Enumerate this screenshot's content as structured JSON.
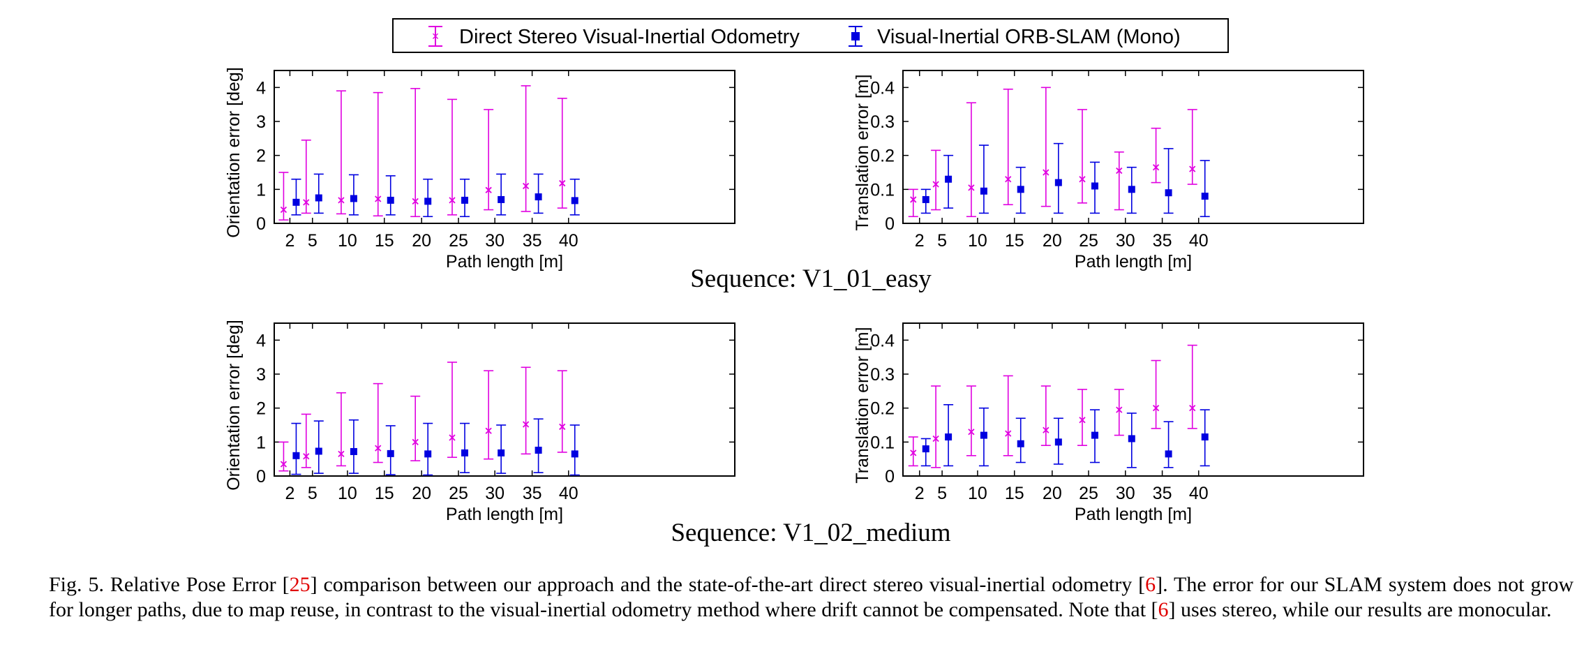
{
  "legend": {
    "dsvio_label": "Direct Stereo Visual-Inertial Odometry",
    "orb_label": "Visual-Inertial ORB-SLAM (Mono)"
  },
  "colors": {
    "dsvio": "#e000e0",
    "orb": "#0000e0"
  },
  "chart_data": [
    {
      "type": "errorbar",
      "id": "v1_01_orient",
      "title": "Sequence: V1_01_easy",
      "xlabel": "Path length [m]",
      "ylabel": "Orientation error [deg]",
      "categories": [
        "2",
        "5",
        "10",
        "15",
        "20",
        "25",
        "30",
        "35",
        "40"
      ],
      "ylim": [
        0,
        4.5
      ],
      "yticks": [
        "0",
        "1",
        "2",
        "3",
        "4"
      ],
      "ytick_values": [
        0,
        1,
        2,
        3,
        4
      ],
      "series": [
        {
          "name": "Direct Stereo Visual-Inertial Odometry",
          "center": [
            0.4,
            0.62,
            0.68,
            0.72,
            0.65,
            0.68,
            0.98,
            1.1,
            1.18
          ],
          "low": [
            0.1,
            0.3,
            0.28,
            0.22,
            0.2,
            0.25,
            0.4,
            0.35,
            0.45
          ],
          "high": [
            1.5,
            2.45,
            3.9,
            3.85,
            3.97,
            3.65,
            3.35,
            4.05,
            3.68
          ]
        },
        {
          "name": "Visual-Inertial ORB-SLAM (Mono)",
          "center": [
            0.62,
            0.75,
            0.73,
            0.68,
            0.65,
            0.68,
            0.7,
            0.78,
            0.67
          ],
          "low": [
            0.25,
            0.3,
            0.25,
            0.25,
            0.2,
            0.2,
            0.25,
            0.3,
            0.25
          ],
          "high": [
            1.3,
            1.45,
            1.43,
            1.4,
            1.3,
            1.3,
            1.45,
            1.45,
            1.3
          ]
        }
      ]
    },
    {
      "type": "errorbar",
      "id": "v1_01_trans",
      "title": "Sequence: V1_01_easy",
      "xlabel": "Path length [m]",
      "ylabel": "Translation error [m]",
      "categories": [
        "2",
        "5",
        "10",
        "15",
        "20",
        "25",
        "30",
        "35",
        "40"
      ],
      "ylim": [
        0,
        0.45
      ],
      "yticks": [
        "0",
        "0.1",
        "0.2",
        "0.3",
        "0.4"
      ],
      "ytick_values": [
        0,
        0.1,
        0.2,
        0.3,
        0.4
      ],
      "series": [
        {
          "name": "Direct Stereo Visual-Inertial Odometry",
          "center": [
            0.07,
            0.115,
            0.105,
            0.13,
            0.15,
            0.13,
            0.155,
            0.165,
            0.16
          ],
          "low": [
            0.02,
            0.04,
            0.02,
            0.055,
            0.05,
            0.06,
            0.04,
            0.12,
            0.115
          ],
          "high": [
            0.1,
            0.215,
            0.355,
            0.395,
            0.4,
            0.335,
            0.21,
            0.28,
            0.335
          ]
        },
        {
          "name": "Visual-Inertial ORB-SLAM (Mono)",
          "center": [
            0.07,
            0.13,
            0.095,
            0.1,
            0.12,
            0.11,
            0.1,
            0.09,
            0.08
          ],
          "low": [
            0.03,
            0.045,
            0.03,
            0.03,
            0.03,
            0.03,
            0.03,
            0.03,
            0.02
          ],
          "high": [
            0.1,
            0.2,
            0.23,
            0.165,
            0.235,
            0.18,
            0.165,
            0.22,
            0.185
          ]
        }
      ]
    },
    {
      "type": "errorbar",
      "id": "v1_02_orient",
      "title": "Sequence: V1_02_medium",
      "xlabel": "Path length [m]",
      "ylabel": "Orientation error [deg]",
      "categories": [
        "2",
        "5",
        "10",
        "15",
        "20",
        "25",
        "30",
        "35",
        "40"
      ],
      "ylim": [
        0,
        4.5
      ],
      "yticks": [
        "0",
        "1",
        "2",
        "3",
        "4"
      ],
      "ytick_values": [
        0,
        1,
        2,
        3,
        4
      ],
      "series": [
        {
          "name": "Direct Stereo Visual-Inertial Odometry",
          "center": [
            0.35,
            0.58,
            0.65,
            0.82,
            1.0,
            1.13,
            1.33,
            1.52,
            1.45
          ],
          "low": [
            0.15,
            0.25,
            0.3,
            0.4,
            0.45,
            0.55,
            0.5,
            0.65,
            0.7
          ],
          "high": [
            1.0,
            1.82,
            2.45,
            2.72,
            2.35,
            3.35,
            3.1,
            3.2,
            3.1
          ]
        },
        {
          "name": "Visual-Inertial ORB-SLAM (Mono)",
          "center": [
            0.6,
            0.73,
            0.72,
            0.66,
            0.65,
            0.68,
            0.68,
            0.76,
            0.65
          ],
          "low": [
            0.05,
            0.08,
            0.08,
            0.04,
            0.03,
            0.1,
            0.08,
            0.1,
            0.03
          ],
          "high": [
            1.55,
            1.62,
            1.65,
            1.48,
            1.55,
            1.55,
            1.5,
            1.68,
            1.5
          ]
        }
      ]
    },
    {
      "type": "errorbar",
      "id": "v1_02_trans",
      "title": "Sequence: V1_02_medium",
      "xlabel": "Path length [m]",
      "ylabel": "Translation error [m]",
      "categories": [
        "2",
        "5",
        "10",
        "15",
        "20",
        "25",
        "30",
        "35",
        "40"
      ],
      "ylim": [
        0,
        0.45
      ],
      "yticks": [
        "0",
        "0.1",
        "0.2",
        "0.3",
        "0.4"
      ],
      "ytick_values": [
        0,
        0.1,
        0.2,
        0.3,
        0.4
      ],
      "series": [
        {
          "name": "Direct Stereo Visual-Inertial Odometry",
          "center": [
            0.068,
            0.11,
            0.13,
            0.125,
            0.135,
            0.165,
            0.195,
            0.2,
            0.2
          ],
          "low": [
            0.03,
            0.025,
            0.06,
            0.06,
            0.09,
            0.09,
            0.12,
            0.14,
            0.14
          ],
          "high": [
            0.115,
            0.265,
            0.265,
            0.295,
            0.265,
            0.255,
            0.255,
            0.34,
            0.385
          ]
        },
        {
          "name": "Visual-Inertial ORB-SLAM (Mono)",
          "center": [
            0.08,
            0.115,
            0.12,
            0.095,
            0.1,
            0.12,
            0.11,
            0.065,
            0.115
          ],
          "low": [
            0.03,
            0.03,
            0.03,
            0.04,
            0.035,
            0.04,
            0.025,
            0.025,
            0.03
          ],
          "high": [
            0.11,
            0.21,
            0.2,
            0.17,
            0.17,
            0.195,
            0.185,
            0.16,
            0.195
          ]
        }
      ]
    }
  ],
  "sequence_titles": {
    "top": "Sequence: V1_01_easy",
    "bottom": "Sequence: V1_02_medium"
  },
  "caption": {
    "p1": "Fig. 5.  Relative Pose Error [",
    "ref1": "25",
    "p2": "] comparison between our approach and the state-of-the-art direct stereo visual-inertial odometry [",
    "ref2": "6",
    "p3": "]. The error for our SLAM system does not grow for longer paths, due to map reuse, in contrast to the visual-inertial odometry method where drift cannot be compensated. Note that [",
    "ref3": "6",
    "p4": "] uses stereo, while our results are monocular."
  }
}
